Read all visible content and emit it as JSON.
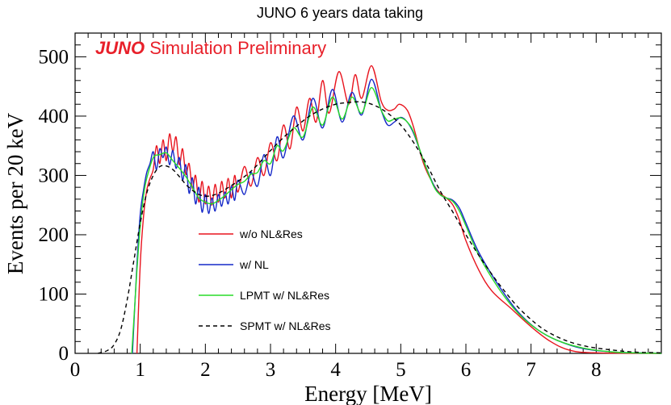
{
  "chart_data": {
    "type": "line",
    "title": "JUNO 6 years data taking",
    "banner": {
      "bold": "JUNO",
      "rest": " Simulation Preliminary",
      "color": "#e8202a"
    },
    "xlabel": "Energy [MeV]",
    "ylabel": "Events per 20 keV",
    "xlim": [
      0,
      9
    ],
    "ylim": [
      0,
      540
    ],
    "xticks": [
      0,
      1,
      2,
      3,
      4,
      5,
      6,
      7,
      8
    ],
    "yticks": [
      0,
      100,
      200,
      300,
      400,
      500
    ],
    "legend_position": "center-left",
    "series": [
      {
        "name": "w/o NL&Res",
        "color": "#e8141e",
        "dash": "none",
        "points": [
          [
            0.95,
            0
          ],
          [
            1.0,
            150
          ],
          [
            1.05,
            230
          ],
          [
            1.1,
            275
          ],
          [
            1.15,
            295
          ],
          [
            1.2,
            310
          ],
          [
            1.25,
            350
          ],
          [
            1.3,
            320
          ],
          [
            1.35,
            360
          ],
          [
            1.4,
            325
          ],
          [
            1.45,
            370
          ],
          [
            1.5,
            340
          ],
          [
            1.55,
            365
          ],
          [
            1.6,
            318
          ],
          [
            1.65,
            345
          ],
          [
            1.7,
            302
          ],
          [
            1.75,
            320
          ],
          [
            1.8,
            278
          ],
          [
            1.85,
            300
          ],
          [
            1.9,
            255
          ],
          [
            1.95,
            290
          ],
          [
            2.0,
            252
          ],
          [
            2.05,
            282
          ],
          [
            2.1,
            250
          ],
          [
            2.15,
            285
          ],
          [
            2.2,
            255
          ],
          [
            2.25,
            290
          ],
          [
            2.3,
            262
          ],
          [
            2.35,
            295
          ],
          [
            2.4,
            262
          ],
          [
            2.45,
            300
          ],
          [
            2.5,
            272
          ],
          [
            2.6,
            315
          ],
          [
            2.7,
            282
          ],
          [
            2.8,
            330
          ],
          [
            2.9,
            300
          ],
          [
            3.0,
            355
          ],
          [
            3.1,
            325
          ],
          [
            3.2,
            385
          ],
          [
            3.3,
            345
          ],
          [
            3.4,
            415
          ],
          [
            3.5,
            375
          ],
          [
            3.6,
            430
          ],
          [
            3.7,
            390
          ],
          [
            3.8,
            460
          ],
          [
            3.9,
            405
          ],
          [
            4.05,
            475
          ],
          [
            4.2,
            420
          ],
          [
            4.3,
            470
          ],
          [
            4.4,
            430
          ],
          [
            4.55,
            485
          ],
          [
            4.7,
            425
          ],
          [
            4.8,
            410
          ],
          [
            4.9,
            412
          ],
          [
            4.98,
            420
          ],
          [
            5.1,
            410
          ],
          [
            5.2,
            380
          ],
          [
            5.35,
            320
          ],
          [
            5.5,
            285
          ],
          [
            5.6,
            270
          ],
          [
            5.7,
            262
          ],
          [
            5.8,
            250
          ],
          [
            5.9,
            225
          ],
          [
            6.0,
            190
          ],
          [
            6.2,
            140
          ],
          [
            6.4,
            105
          ],
          [
            6.7,
            75
          ],
          [
            7.0,
            45
          ],
          [
            7.3,
            20
          ],
          [
            7.6,
            5
          ],
          [
            8.0,
            1
          ],
          [
            9.0,
            0
          ]
        ]
      },
      {
        "name": "w/ NL",
        "color": "#1528c8",
        "dash": "none",
        "points": [
          [
            0.88,
            0
          ],
          [
            0.95,
            150
          ],
          [
            1.0,
            235
          ],
          [
            1.05,
            275
          ],
          [
            1.1,
            305
          ],
          [
            1.15,
            320
          ],
          [
            1.2,
            340
          ],
          [
            1.25,
            310
          ],
          [
            1.3,
            345
          ],
          [
            1.35,
            330
          ],
          [
            1.4,
            348
          ],
          [
            1.45,
            318
          ],
          [
            1.5,
            342
          ],
          [
            1.55,
            312
          ],
          [
            1.6,
            330
          ],
          [
            1.65,
            292
          ],
          [
            1.7,
            318
          ],
          [
            1.75,
            270
          ],
          [
            1.8,
            296
          ],
          [
            1.85,
            252
          ],
          [
            1.9,
            280
          ],
          [
            1.95,
            238
          ],
          [
            2.0,
            268
          ],
          [
            2.05,
            236
          ],
          [
            2.1,
            262
          ],
          [
            2.15,
            240
          ],
          [
            2.2,
            268
          ],
          [
            2.25,
            248
          ],
          [
            2.3,
            272
          ],
          [
            2.35,
            252
          ],
          [
            2.4,
            282
          ],
          [
            2.45,
            258
          ],
          [
            2.5,
            292
          ],
          [
            2.6,
            268
          ],
          [
            2.7,
            305
          ],
          [
            2.8,
            282
          ],
          [
            2.9,
            335
          ],
          [
            3.0,
            300
          ],
          [
            3.1,
            365
          ],
          [
            3.2,
            330
          ],
          [
            3.35,
            400
          ],
          [
            3.5,
            360
          ],
          [
            3.65,
            430
          ],
          [
            3.8,
            380
          ],
          [
            3.95,
            445
          ],
          [
            4.1,
            390
          ],
          [
            4.25,
            440
          ],
          [
            4.4,
            402
          ],
          [
            4.55,
            462
          ],
          [
            4.7,
            410
          ],
          [
            4.8,
            385
          ],
          [
            4.9,
            390
          ],
          [
            5.0,
            398
          ],
          [
            5.1,
            390
          ],
          [
            5.2,
            370
          ],
          [
            5.35,
            325
          ],
          [
            5.5,
            285
          ],
          [
            5.6,
            268
          ],
          [
            5.7,
            262
          ],
          [
            5.8,
            258
          ],
          [
            5.9,
            245
          ],
          [
            6.0,
            220
          ],
          [
            6.2,
            170
          ],
          [
            6.5,
            115
          ],
          [
            6.8,
            70
          ],
          [
            7.1,
            40
          ],
          [
            7.4,
            22
          ],
          [
            7.8,
            8
          ],
          [
            8.3,
            2
          ],
          [
            9.0,
            0
          ]
        ]
      },
      {
        "name": "LPMT w/ NL&Res",
        "color": "#28dc28",
        "dash": "none",
        "points": [
          [
            0.87,
            0
          ],
          [
            0.95,
            140
          ],
          [
            1.0,
            215
          ],
          [
            1.05,
            265
          ],
          [
            1.1,
            295
          ],
          [
            1.2,
            330
          ],
          [
            1.3,
            335
          ],
          [
            1.4,
            338
          ],
          [
            1.5,
            325
          ],
          [
            1.6,
            312
          ],
          [
            1.7,
            298
          ],
          [
            1.8,
            280
          ],
          [
            1.9,
            262
          ],
          [
            2.0,
            255
          ],
          [
            2.1,
            252
          ],
          [
            2.2,
            258
          ],
          [
            2.3,
            266
          ],
          [
            2.4,
            276
          ],
          [
            2.5,
            285
          ],
          [
            2.6,
            290
          ],
          [
            2.7,
            302
          ],
          [
            2.8,
            305
          ],
          [
            2.9,
            325
          ],
          [
            3.0,
            320
          ],
          [
            3.1,
            350
          ],
          [
            3.2,
            342
          ],
          [
            3.35,
            380
          ],
          [
            3.5,
            365
          ],
          [
            3.65,
            415
          ],
          [
            3.8,
            385
          ],
          [
            3.95,
            432
          ],
          [
            4.1,
            395
          ],
          [
            4.25,
            432
          ],
          [
            4.4,
            405
          ],
          [
            4.55,
            448
          ],
          [
            4.7,
            410
          ],
          [
            4.8,
            392
          ],
          [
            4.9,
            395
          ],
          [
            5.0,
            397
          ],
          [
            5.1,
            390
          ],
          [
            5.2,
            372
          ],
          [
            5.35,
            325
          ],
          [
            5.5,
            283
          ],
          [
            5.6,
            268
          ],
          [
            5.7,
            262
          ],
          [
            5.8,
            256
          ],
          [
            5.9,
            240
          ],
          [
            6.0,
            215
          ],
          [
            6.2,
            165
          ],
          [
            6.5,
            110
          ],
          [
            6.8,
            68
          ],
          [
            7.1,
            40
          ],
          [
            7.4,
            22
          ],
          [
            7.8,
            9
          ],
          [
            8.3,
            2
          ],
          [
            9.0,
            0
          ]
        ]
      },
      {
        "name": "SPMT w/ NL&Res",
        "color": "#000000",
        "dash": "5,4",
        "points": [
          [
            0.35,
            0
          ],
          [
            0.5,
            5
          ],
          [
            0.6,
            15
          ],
          [
            0.7,
            40
          ],
          [
            0.8,
            90
          ],
          [
            0.9,
            155
          ],
          [
            1.0,
            220
          ],
          [
            1.1,
            270
          ],
          [
            1.2,
            300
          ],
          [
            1.3,
            315
          ],
          [
            1.4,
            316
          ],
          [
            1.5,
            310
          ],
          [
            1.6,
            298
          ],
          [
            1.7,
            285
          ],
          [
            1.8,
            275
          ],
          [
            1.9,
            268
          ],
          [
            2.0,
            265
          ],
          [
            2.1,
            266
          ],
          [
            2.2,
            270
          ],
          [
            2.3,
            276
          ],
          [
            2.4,
            283
          ],
          [
            2.5,
            290
          ],
          [
            2.6,
            298
          ],
          [
            2.7,
            307
          ],
          [
            2.8,
            318
          ],
          [
            2.9,
            330
          ],
          [
            3.0,
            342
          ],
          [
            3.2,
            364
          ],
          [
            3.4,
            383
          ],
          [
            3.6,
            400
          ],
          [
            3.8,
            412
          ],
          [
            4.0,
            420
          ],
          [
            4.2,
            423
          ],
          [
            4.4,
            424
          ],
          [
            4.6,
            418
          ],
          [
            4.8,
            405
          ],
          [
            5.0,
            385
          ],
          [
            5.2,
            355
          ],
          [
            5.4,
            318
          ],
          [
            5.6,
            275
          ],
          [
            5.8,
            238
          ],
          [
            6.0,
            200
          ],
          [
            6.2,
            165
          ],
          [
            6.4,
            133
          ],
          [
            6.6,
            104
          ],
          [
            6.8,
            78
          ],
          [
            7.0,
            57
          ],
          [
            7.2,
            40
          ],
          [
            7.4,
            28
          ],
          [
            7.6,
            19
          ],
          [
            7.8,
            13
          ],
          [
            8.0,
            9
          ],
          [
            8.3,
            5
          ],
          [
            8.6,
            2
          ],
          [
            9.0,
            1
          ]
        ]
      }
    ]
  }
}
